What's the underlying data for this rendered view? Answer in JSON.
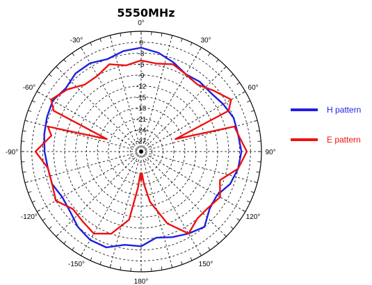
{
  "chart_data": {
    "type": "polar-line",
    "title": "5550MHz",
    "angle_labels": [
      "0°",
      "30°",
      "60°",
      "90°",
      "120°",
      "150°",
      "180°",
      "-150°",
      "-120°",
      "-90°",
      "-60°",
      "-30°"
    ],
    "angle_values": [
      0,
      30,
      60,
      90,
      120,
      150,
      180,
      -150,
      -120,
      -90,
      -60,
      -30
    ],
    "radial_unit": "dB",
    "radial_range": [
      -30,
      3
    ],
    "radial_ticks": [
      0,
      -3,
      -6,
      -9,
      -12,
      -15,
      -18,
      -21,
      -24,
      -27
    ],
    "radial_tick_labels": [
      "0",
      "-3",
      "-6",
      "-9",
      "-12",
      "-15",
      "-18",
      "-21",
      "-24",
      "-27"
    ],
    "grid": true,
    "legend_position": "right",
    "series": [
      {
        "name": "H pattern",
        "color": "#1f1fe0",
        "angles": [
          0,
          10,
          20,
          30,
          40,
          50,
          60,
          70,
          80,
          90,
          100,
          110,
          120,
          130,
          140,
          150,
          160,
          170,
          180,
          -170,
          -160,
          -150,
          -140,
          -130,
          -120,
          -110,
          -100,
          -90,
          -80,
          -70,
          -60,
          -50,
          -40,
          -30,
          -20,
          -10
        ],
        "values": [
          -1.5,
          -2.5,
          -4,
          -5.5,
          -5,
          -5,
          -4,
          -3,
          -3,
          -2.5,
          -3,
          -4,
          -6,
          -5.5,
          -3,
          -4,
          -5,
          -6,
          -4,
          -4,
          -2,
          -2,
          -3,
          -4.5,
          -5,
          -4,
          -4,
          -3.5,
          -3,
          -2.5,
          -2,
          -3,
          -2,
          -2,
          -3,
          -2
        ]
      },
      {
        "name": "E pattern",
        "color": "#ee1111",
        "angles": [
          0,
          10,
          20,
          30,
          40,
          50,
          60,
          65,
          70,
          75,
          80,
          90,
          100,
          110,
          120,
          130,
          140,
          150,
          160,
          170,
          175,
          178,
          180,
          182,
          185,
          -170,
          -160,
          -150,
          -140,
          -130,
          -120,
          -110,
          -100,
          -90,
          -80,
          -75,
          -70,
          -65,
          -60,
          -50,
          -40,
          -30,
          -20,
          -10
        ],
        "values": [
          -5,
          -5.5,
          -4.5,
          -5.5,
          -6,
          -4,
          -1.5,
          -3.5,
          -20,
          -3.5,
          -3,
          -1,
          -3,
          -7,
          -5,
          -6,
          -6,
          -4,
          -9,
          -16,
          -21,
          -24,
          -22,
          -24,
          -20,
          -11,
          -6,
          -4,
          -5,
          -5.5,
          -3,
          -4,
          -4,
          -1,
          -5,
          -3.5,
          -20,
          -3.5,
          -1.5,
          -3.5,
          -6,
          -6,
          -4.5,
          -6
        ]
      }
    ]
  }
}
